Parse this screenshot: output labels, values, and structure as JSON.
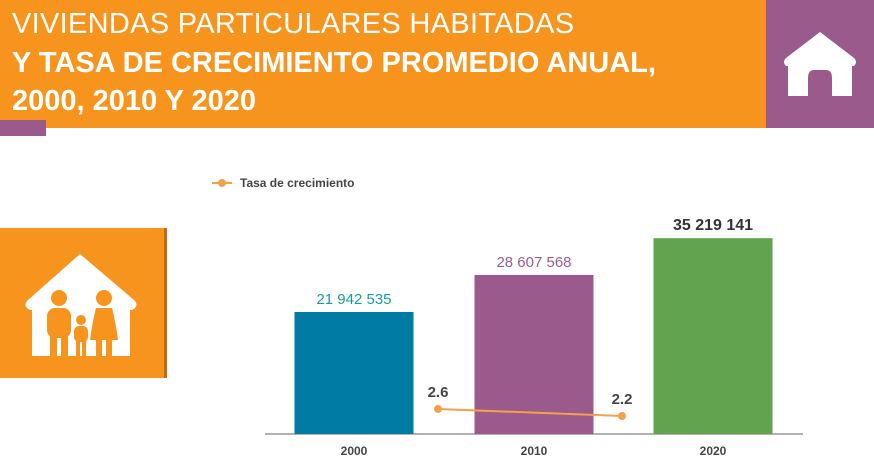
{
  "header": {
    "line1": "VIVIENDAS PARTICULARES HABITADAS",
    "line2": "Y TASA DE CRECIMIENTO PROMEDIO ANUAL,",
    "line3": "2000, 2010 Y 2020",
    "icon": "house-icon"
  },
  "side_icon": "family-house-icon",
  "colors": {
    "orange": "#f7941d",
    "purple": "#9b5a8c",
    "teal": "#007ba3",
    "green": "#61a34f",
    "line": "#f5a04a"
  },
  "chart_data": {
    "type": "bar",
    "categories": [
      "2000",
      "2010",
      "2020"
    ],
    "series": [
      {
        "values": [
          21942535,
          28607568,
          35219141
        ],
        "labels": [
          "21 942 535",
          "28 607 568",
          "35 219 141"
        ],
        "colors": [
          "#007ba3",
          "#9b5a8c",
          "#61a34f"
        ],
        "label_colors": [
          "#1a9a9e",
          "#9b5a8c",
          "#333333"
        ]
      },
      {
        "name": "Tasa de crecimiento",
        "type": "line",
        "x": [
          "2000-2010",
          "2010-2020"
        ],
        "values": [
          2.6,
          2.2
        ],
        "labels": [
          "2.6",
          "2.2"
        ],
        "color": "#f5a04a"
      }
    ],
    "legend": "top-left",
    "grid": false
  }
}
